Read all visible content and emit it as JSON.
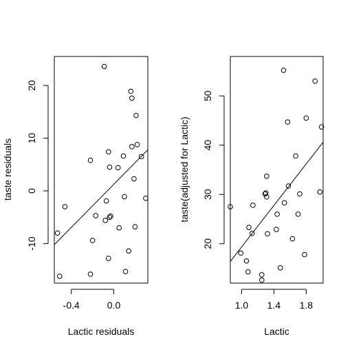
{
  "chart_data": [
    {
      "type": "scatter",
      "title": "",
      "xlabel": "Lactic residuals",
      "ylabel": "taste residuals",
      "xlim": [
        -0.56,
        0.32
      ],
      "ylim": [
        -17.5,
        25.5
      ],
      "xticks": [
        -0.4,
        0.0
      ],
      "xtick_labels": [
        "-0.4",
        "0.0"
      ],
      "yticks": [
        -10,
        0,
        10,
        20
      ],
      "ytick_labels": [
        "-10",
        "0",
        "10",
        "20"
      ],
      "grid": false,
      "points": [
        {
          "x": -0.53,
          "y": -8.0
        },
        {
          "x": -0.51,
          "y": -16.2
        },
        {
          "x": -0.46,
          "y": -3.0
        },
        {
          "x": -0.22,
          "y": -15.8
        },
        {
          "x": -0.22,
          "y": 5.8
        },
        {
          "x": -0.2,
          "y": -9.4
        },
        {
          "x": -0.17,
          "y": -4.7
        },
        {
          "x": -0.09,
          "y": 23.6
        },
        {
          "x": -0.08,
          "y": -5.6
        },
        {
          "x": -0.07,
          "y": -1.9
        },
        {
          "x": -0.05,
          "y": -12.8
        },
        {
          "x": -0.05,
          "y": 7.4
        },
        {
          "x": -0.04,
          "y": -5.0
        },
        {
          "x": -0.04,
          "y": 4.5
        },
        {
          "x": -0.03,
          "y": -4.8
        },
        {
          "x": 0.04,
          "y": 4.4
        },
        {
          "x": 0.05,
          "y": -7.0
        },
        {
          "x": 0.09,
          "y": 6.6
        },
        {
          "x": 0.1,
          "y": -1.1
        },
        {
          "x": 0.11,
          "y": -15.3
        },
        {
          "x": 0.14,
          "y": -11.4
        },
        {
          "x": 0.16,
          "y": 18.9
        },
        {
          "x": 0.17,
          "y": 17.6
        },
        {
          "x": 0.17,
          "y": 8.4
        },
        {
          "x": 0.19,
          "y": 2.3
        },
        {
          "x": 0.2,
          "y": -6.8
        },
        {
          "x": 0.21,
          "y": 14.3
        },
        {
          "x": 0.22,
          "y": 8.8
        },
        {
          "x": 0.26,
          "y": 6.5
        },
        {
          "x": 0.3,
          "y": -1.4
        }
      ],
      "fit_line": {
        "x": [
          -0.56,
          0.32
        ],
        "y": [
          -10.2,
          7.8
        ]
      }
    },
    {
      "type": "scatter",
      "title": "",
      "xlabel": "Lactic",
      "ylabel": "taste(adjusted for Lactic)",
      "xlim": [
        0.86,
        2.01
      ],
      "ylim": [
        12.0,
        58.0
      ],
      "xticks": [
        1.0,
        1.4,
        1.8
      ],
      "xtick_labels": [
        "1.0",
        "1.4",
        "1.8"
      ],
      "yticks": [
        20,
        30,
        40,
        50
      ],
      "ytick_labels": [
        "20",
        "30",
        "40",
        "50"
      ],
      "grid": false,
      "points": [
        {
          "x": 0.86,
          "y": 27.5
        },
        {
          "x": 0.99,
          "y": 18.1
        },
        {
          "x": 1.06,
          "y": 16.5
        },
        {
          "x": 1.08,
          "y": 14.3
        },
        {
          "x": 1.09,
          "y": 23.3
        },
        {
          "x": 1.13,
          "y": 22.1
        },
        {
          "x": 1.14,
          "y": 27.8
        },
        {
          "x": 1.25,
          "y": 13.7
        },
        {
          "x": 1.25,
          "y": 12.6
        },
        {
          "x": 1.29,
          "y": 30.1
        },
        {
          "x": 1.3,
          "y": 30.3
        },
        {
          "x": 1.31,
          "y": 33.7
        },
        {
          "x": 1.31,
          "y": 29.5
        },
        {
          "x": 1.32,
          "y": 22.0
        },
        {
          "x": 1.43,
          "y": 22.9
        },
        {
          "x": 1.44,
          "y": 26.0
        },
        {
          "x": 1.48,
          "y": 15.1
        },
        {
          "x": 1.52,
          "y": 55.2
        },
        {
          "x": 1.53,
          "y": 28.3
        },
        {
          "x": 1.57,
          "y": 44.7
        },
        {
          "x": 1.58,
          "y": 31.7
        },
        {
          "x": 1.63,
          "y": 21.0
        },
        {
          "x": 1.67,
          "y": 37.8
        },
        {
          "x": 1.7,
          "y": 26.0
        },
        {
          "x": 1.72,
          "y": 30.1
        },
        {
          "x": 1.78,
          "y": 17.8
        },
        {
          "x": 1.8,
          "y": 45.5
        },
        {
          "x": 1.91,
          "y": 53.0
        },
        {
          "x": 1.97,
          "y": 30.5
        },
        {
          "x": 1.99,
          "y": 43.7
        }
      ],
      "fit_line": {
        "x": [
          0.86,
          2.01
        ],
        "y": [
          16.4,
          40.6
        ]
      }
    }
  ]
}
